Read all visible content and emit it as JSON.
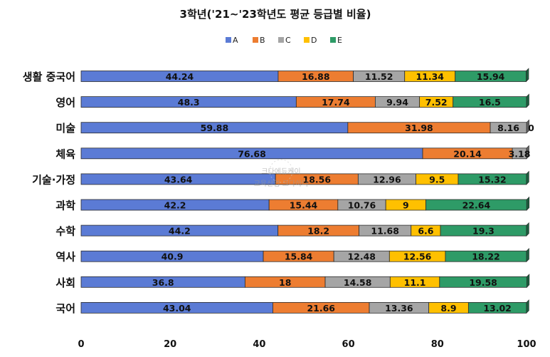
{
  "chart_data": {
    "type": "bar",
    "orientation": "horizontal",
    "stacked": true,
    "title": "3학년('21~'23학년도 평균 등급별 비율)",
    "xlabel": "",
    "ylabel": "",
    "xlim": [
      0,
      100
    ],
    "x_ticks": [
      "0",
      "20",
      "40",
      "60",
      "80",
      "100"
    ],
    "grid": false,
    "legend_position": "top",
    "categories": [
      "생활 중국어",
      "영어",
      "미술",
      "체육",
      "기술·가정",
      "과학",
      "수학",
      "역사",
      "사회",
      "국어"
    ],
    "series": [
      {
        "name": "A",
        "color": "#5b7bd5",
        "values": [
          44.24,
          48.3,
          59.88,
          76.68,
          43.64,
          42.2,
          44.2,
          40.9,
          36.8,
          43.04
        ]
      },
      {
        "name": "B",
        "color": "#ed7d31",
        "values": [
          16.88,
          17.74,
          31.98,
          20.14,
          18.56,
          15.44,
          18.2,
          15.84,
          18,
          21.66
        ]
      },
      {
        "name": "C",
        "color": "#a5a5a5",
        "values": [
          11.52,
          9.94,
          8.16,
          3.18,
          12.96,
          10.76,
          11.68,
          12.48,
          14.58,
          13.36
        ]
      },
      {
        "name": "D",
        "color": "#ffc000",
        "values": [
          11.34,
          7.52,
          0,
          0,
          9.5,
          9,
          6.6,
          12.56,
          11.1,
          8.9
        ]
      },
      {
        "name": "E",
        "color": "#2e9b67",
        "values": [
          15.94,
          16.5,
          0,
          0,
          15.32,
          22.64,
          19.3,
          18.22,
          19.58,
          13.02
        ]
      }
    ],
    "data_labels": [
      [
        "44.24",
        "16.88",
        "11.52",
        "11.34",
        "15.94"
      ],
      [
        "48.3",
        "17.74",
        "9.94",
        "7.52",
        "16.5"
      ],
      [
        "59.88",
        "31.98",
        "8.16",
        "0",
        ""
      ],
      [
        "76.68",
        "20.14",
        "3.18",
        "",
        ""
      ],
      [
        "43.64",
        "18.56",
        "12.96",
        "9.5",
        "15.32"
      ],
      [
        "42.2",
        "15.44",
        "10.76",
        "9",
        "22.64"
      ],
      [
        "44.2",
        "18.2",
        "11.68",
        "6.6",
        "19.3"
      ],
      [
        "40.9",
        "15.84",
        "12.48",
        "12.56",
        "18.22"
      ],
      [
        "36.8",
        "18",
        "14.58",
        "11.1",
        "19.58"
      ],
      [
        "43.04",
        "21.66",
        "13.36",
        "8.9",
        "13.02"
      ]
    ]
  },
  "watermark": {
    "line1": "크다에듀케이",
    "line2": "교육산업 크다하다"
  }
}
